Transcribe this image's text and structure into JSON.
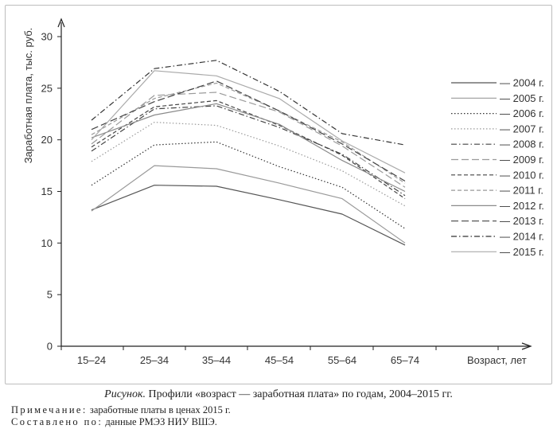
{
  "chart_data": {
    "type": "line",
    "categories": [
      "15–24",
      "25–34",
      "35–44",
      "45–54",
      "55–64",
      "65–74"
    ],
    "xlabel": "Возраст, лет",
    "ylabel": "Заработная плата, тыс. руб.",
    "ylim": [
      0,
      30
    ],
    "yticks": [
      0,
      5,
      10,
      15,
      20,
      25,
      30
    ],
    "grid": false,
    "legend_position": "right",
    "series": [
      {
        "name": "— 2004 г.",
        "values": [
          13.2,
          15.6,
          15.5,
          14.2,
          12.8,
          9.8
        ],
        "dash": "solid",
        "color": "#555555"
      },
      {
        "name": "— 2005 г.",
        "values": [
          13.1,
          17.5,
          17.2,
          15.8,
          14.3,
          10.0
        ],
        "dash": "solid",
        "color": "#9a9a9a"
      },
      {
        "name": "— 2006 г.",
        "values": [
          15.6,
          19.5,
          19.8,
          17.4,
          15.4,
          11.4
        ],
        "dash": "dot",
        "color": "#333333"
      },
      {
        "name": "— 2007 г.",
        "values": [
          17.9,
          21.7,
          21.4,
          19.4,
          17.0,
          13.6
        ],
        "dash": "dot",
        "color": "#9a9a9a"
      },
      {
        "name": "— 2008 г.",
        "values": [
          18.9,
          23.0,
          23.3,
          21.2,
          18.6,
          14.6
        ],
        "dash": "dashdot",
        "color": "#444444"
      },
      {
        "name": "— 2009 г.",
        "values": [
          19.6,
          24.3,
          24.6,
          22.7,
          19.4,
          15.4
        ],
        "dash": "longdash",
        "color": "#9a9a9a"
      },
      {
        "name": "— 2010 г.",
        "values": [
          19.3,
          23.2,
          23.8,
          21.4,
          18.5,
          14.3
        ],
        "dash": "dash",
        "color": "#444444"
      },
      {
        "name": "— 2011 г.",
        "values": [
          20.5,
          24.0,
          25.5,
          22.8,
          19.8,
          15.8
        ],
        "dash": "dash",
        "color": "#9a9a9a"
      },
      {
        "name": "— 2012 г.",
        "values": [
          20.2,
          22.4,
          23.5,
          21.5,
          18.0,
          15.0
        ],
        "dash": "solid",
        "color": "#8a8a8a"
      },
      {
        "name": "— 2013 г.",
        "values": [
          21.0,
          23.7,
          25.7,
          22.8,
          19.6,
          16.0
        ],
        "dash": "longdash",
        "color": "#444444"
      },
      {
        "name": "— 2014 г.",
        "values": [
          21.9,
          26.9,
          27.7,
          24.7,
          20.6,
          19.5
        ],
        "dash": "dashdot",
        "color": "#333333"
      },
      {
        "name": "— 2015 г.",
        "values": [
          20.0,
          26.7,
          26.2,
          24.0,
          19.9,
          16.8
        ],
        "dash": "solid",
        "color": "#aaaaaa"
      }
    ]
  },
  "caption": {
    "lead": "Рисунок.",
    "title": " Профили «возраст — заработная плата» по годам, 2004–2015 гг.",
    "note_label": "Примечание:",
    "note_text": " заработные платы в ценах 2015 г.",
    "source_label": "Составлено по:",
    "source_text": " данные РМЭЗ НИУ ВШЭ."
  }
}
